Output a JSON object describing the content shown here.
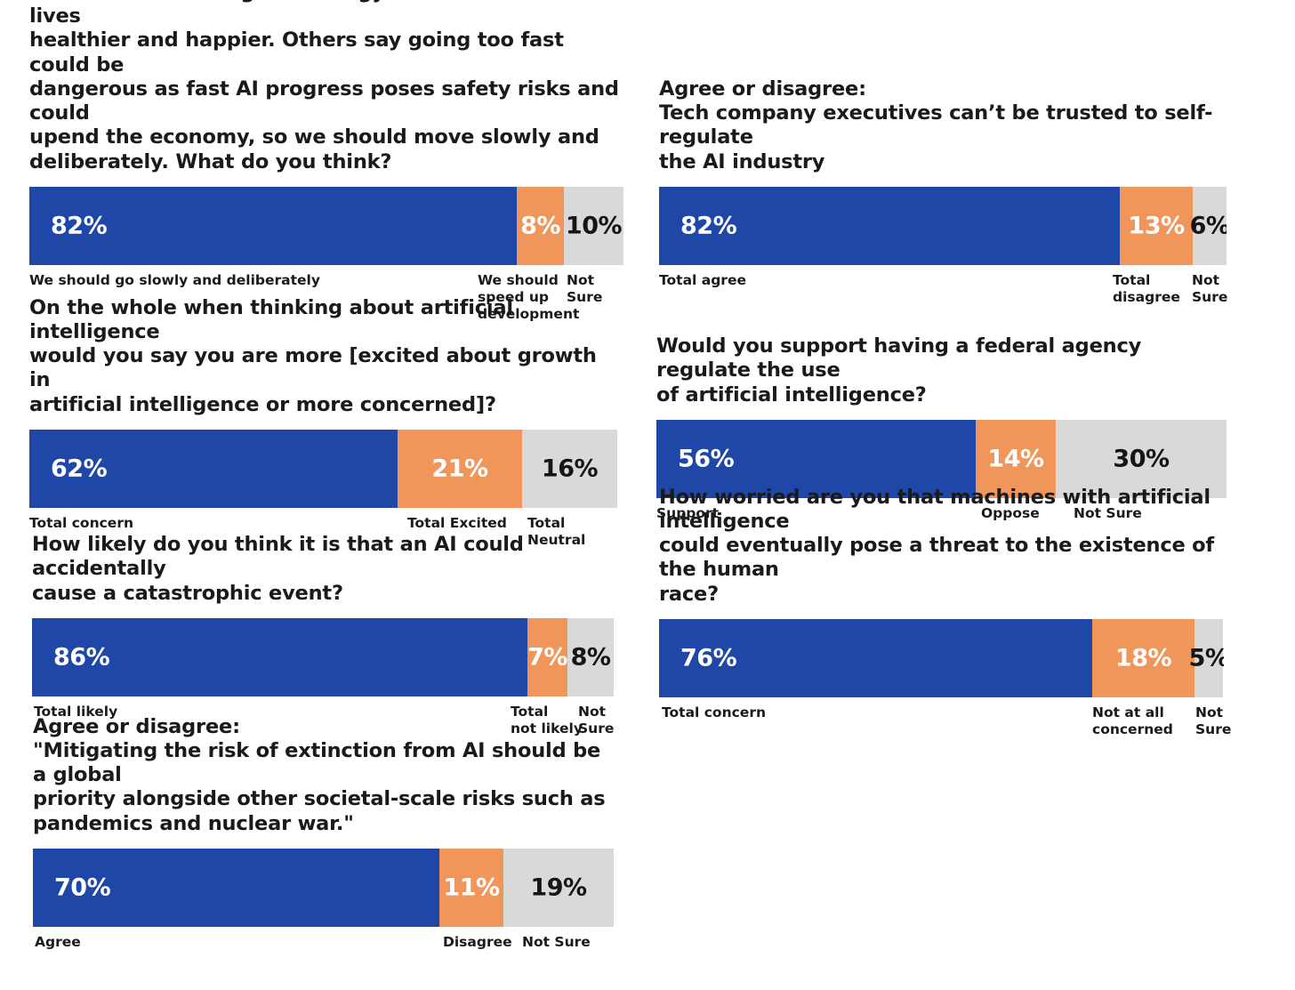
{
  "colors": {
    "primary": "#1f47a8",
    "secondary": "#f0965a",
    "neutral": "#d9d9d9"
  },
  "chart_data": [
    {
      "type": "bar",
      "stacked": true,
      "orientation": "horizontal",
      "title": "Some people say we should speed up AI development\nbecause it will bring technology which makes our lives\nhealthier and happier. Others say going too fast could be\ndangerous as fast AI progress poses safety risks and could\nupend the economy, so we should move slowly and\ndeliberately. What do you think?",
      "categories": [
        "We should go slowly and deliberately",
        "We should\nspeed up\ndevelopment",
        "Not Sure"
      ],
      "values": [
        82,
        8,
        10
      ],
      "value_labels": [
        "82%",
        "8%",
        "10%"
      ]
    },
    {
      "type": "bar",
      "stacked": true,
      "orientation": "horizontal",
      "title": "Agree or disagree:\nTech company executives can’t be trusted to self-regulate\nthe AI industry",
      "categories": [
        "Total agree",
        "Total\ndisagree",
        "Not Sure"
      ],
      "values": [
        82,
        13,
        6
      ],
      "value_labels": [
        "82%",
        "13%",
        "6%"
      ]
    },
    {
      "type": "bar",
      "stacked": true,
      "orientation": "horizontal",
      "title": "On the whole when thinking about artificial intelligence\nwould you say you are more [excited about growth in\nartificial intelligence or more concerned]?",
      "categories": [
        "Total concern",
        "Total Excited",
        "Total Neutral"
      ],
      "values": [
        62,
        21,
        16
      ],
      "value_labels": [
        "62%",
        "21%",
        "16%"
      ]
    },
    {
      "type": "bar",
      "stacked": true,
      "orientation": "horizontal",
      "title": "Would you support having a federal agency regulate the use\nof artificial intelligence?",
      "categories": [
        "Support",
        "Oppose",
        "Not Sure"
      ],
      "values": [
        56,
        14,
        30
      ],
      "value_labels": [
        "56%",
        "14%",
        "30%"
      ]
    },
    {
      "type": "bar",
      "stacked": true,
      "orientation": "horizontal",
      "title": "How likely do you think it is that an AI could accidentally\ncause a catastrophic event?",
      "categories": [
        "Total likely",
        "Total\nnot likely",
        "Not Sure"
      ],
      "values": [
        86,
        7,
        8
      ],
      "value_labels": [
        "86%",
        "7%",
        "8%"
      ]
    },
    {
      "type": "bar",
      "stacked": true,
      "orientation": "horizontal",
      "title": "How worried are you that machines with artificial intelligence\ncould eventually pose a threat to the existence of the human\nrace?",
      "categories": [
        "Total concern",
        "Not at all\nconcerned",
        "Not Sure"
      ],
      "values": [
        76,
        18,
        5
      ],
      "value_labels": [
        "76%",
        "18%",
        "5%"
      ]
    },
    {
      "type": "bar",
      "stacked": true,
      "orientation": "horizontal",
      "title": "Agree or disagree:\n\"Mitigating the risk of extinction from AI should be a global\npriority alongside other societal-scale risks such as\npandemics and nuclear war.\"",
      "categories": [
        "Agree",
        "Disagree",
        "Not Sure"
      ],
      "values": [
        70,
        11,
        19
      ],
      "value_labels": [
        "70%",
        "11%",
        "19%"
      ]
    }
  ]
}
